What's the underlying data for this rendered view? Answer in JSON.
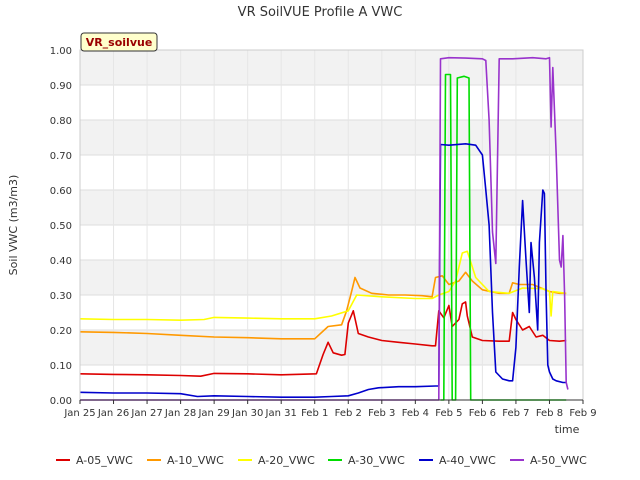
{
  "chart_data": {
    "type": "line",
    "title": "VR SoilVUE Profile A VWC",
    "badge": "VR_soilvue",
    "xlabel": "time",
    "ylabel": "Soil VWC (m3/m3)",
    "xlim": [
      0,
      15
    ],
    "ylim": [
      0,
      1
    ],
    "x_tick_labels": [
      "Jan 25",
      "Jan 26",
      "Jan 27",
      "Jan 28",
      "Jan 29",
      "Jan 30",
      "Jan 31",
      "Feb 1",
      "Feb 2",
      "Feb 3",
      "Feb 4",
      "Feb 5",
      "Feb 6",
      "Feb 7",
      "Feb 8",
      "Feb 9"
    ],
    "y_ticks": [
      0,
      0.1,
      0.2,
      0.3,
      0.4,
      0.5,
      0.6,
      0.7,
      0.8,
      0.9,
      1.0
    ],
    "y_tick_labels": [
      "0.00",
      "0.10",
      "0.20",
      "0.30",
      "0.40",
      "0.50",
      "0.60",
      "0.70",
      "0.80",
      "0.90",
      "1.00"
    ],
    "x_unit": "days since Jan 25",
    "legend_position": "bottom",
    "series": [
      {
        "name": "A-05_VWC",
        "color": "#dd0000",
        "points": [
          [
            0,
            0.075
          ],
          [
            1,
            0.073
          ],
          [
            2,
            0.072
          ],
          [
            3,
            0.07
          ],
          [
            3.6,
            0.068
          ],
          [
            4,
            0.076
          ],
          [
            5,
            0.075
          ],
          [
            6,
            0.072
          ],
          [
            6.8,
            0.074
          ],
          [
            7.05,
            0.075
          ],
          [
            7.25,
            0.13
          ],
          [
            7.4,
            0.165
          ],
          [
            7.55,
            0.135
          ],
          [
            7.8,
            0.128
          ],
          [
            7.9,
            0.13
          ],
          [
            8.0,
            0.22
          ],
          [
            8.15,
            0.255
          ],
          [
            8.3,
            0.19
          ],
          [
            8.6,
            0.18
          ],
          [
            9.0,
            0.17
          ],
          [
            9.5,
            0.165
          ],
          [
            10,
            0.16
          ],
          [
            10.5,
            0.155
          ],
          [
            10.6,
            0.155
          ],
          [
            10.7,
            0.255
          ],
          [
            10.85,
            0.235
          ],
          [
            11.0,
            0.27
          ],
          [
            11.1,
            0.21
          ],
          [
            11.3,
            0.23
          ],
          [
            11.4,
            0.275
          ],
          [
            11.5,
            0.28
          ],
          [
            11.55,
            0.24
          ],
          [
            11.7,
            0.18
          ],
          [
            12.0,
            0.17
          ],
          [
            12.5,
            0.168
          ],
          [
            12.8,
            0.168
          ],
          [
            12.9,
            0.25
          ],
          [
            13.0,
            0.23
          ],
          [
            13.2,
            0.2
          ],
          [
            13.4,
            0.21
          ],
          [
            13.6,
            0.18
          ],
          [
            13.8,
            0.185
          ],
          [
            14.0,
            0.17
          ],
          [
            14.3,
            0.168
          ],
          [
            14.5,
            0.17
          ]
        ]
      },
      {
        "name": "A-10_VWC",
        "color": "#ff9900",
        "points": [
          [
            0,
            0.195
          ],
          [
            1,
            0.193
          ],
          [
            2,
            0.19
          ],
          [
            3,
            0.185
          ],
          [
            4,
            0.18
          ],
          [
            5,
            0.178
          ],
          [
            6,
            0.175
          ],
          [
            7,
            0.175
          ],
          [
            7.4,
            0.21
          ],
          [
            7.8,
            0.215
          ],
          [
            7.95,
            0.255
          ],
          [
            8.1,
            0.31
          ],
          [
            8.2,
            0.35
          ],
          [
            8.35,
            0.32
          ],
          [
            8.7,
            0.305
          ],
          [
            9.2,
            0.3
          ],
          [
            9.7,
            0.3
          ],
          [
            10.2,
            0.298
          ],
          [
            10.5,
            0.295
          ],
          [
            10.6,
            0.35
          ],
          [
            10.8,
            0.355
          ],
          [
            11.0,
            0.33
          ],
          [
            11.3,
            0.34
          ],
          [
            11.5,
            0.365
          ],
          [
            11.7,
            0.34
          ],
          [
            12.0,
            0.315
          ],
          [
            12.5,
            0.305
          ],
          [
            12.8,
            0.305
          ],
          [
            12.9,
            0.335
          ],
          [
            13.1,
            0.33
          ],
          [
            13.5,
            0.33
          ],
          [
            14.0,
            0.31
          ],
          [
            14.3,
            0.305
          ],
          [
            14.5,
            0.305
          ]
        ]
      },
      {
        "name": "A-20_VWC",
        "color": "#ffff00",
        "points": [
          [
            0,
            0.232
          ],
          [
            1,
            0.23
          ],
          [
            2,
            0.23
          ],
          [
            3,
            0.228
          ],
          [
            3.7,
            0.23
          ],
          [
            4,
            0.236
          ],
          [
            5,
            0.234
          ],
          [
            6,
            0.232
          ],
          [
            7,
            0.232
          ],
          [
            7.5,
            0.24
          ],
          [
            8.0,
            0.255
          ],
          [
            8.25,
            0.3
          ],
          [
            9,
            0.295
          ],
          [
            10,
            0.29
          ],
          [
            10.5,
            0.29
          ],
          [
            10.7,
            0.3
          ],
          [
            11.0,
            0.31
          ],
          [
            11.2,
            0.34
          ],
          [
            11.4,
            0.42
          ],
          [
            11.55,
            0.425
          ],
          [
            11.8,
            0.35
          ],
          [
            12.2,
            0.31
          ],
          [
            12.8,
            0.305
          ],
          [
            13.2,
            0.32
          ],
          [
            13.8,
            0.318
          ],
          [
            14.0,
            0.31
          ],
          [
            14.05,
            0.24
          ],
          [
            14.1,
            0.31
          ],
          [
            14.5,
            0.305
          ]
        ]
      },
      {
        "name": "A-30_VWC",
        "color": "#00dd00",
        "points": [
          [
            10.75,
            0.0
          ],
          [
            10.85,
            0.0
          ],
          [
            10.9,
            0.93
          ],
          [
            11.05,
            0.93
          ],
          [
            11.1,
            0.0
          ],
          [
            11.2,
            0.0
          ],
          [
            11.25,
            0.92
          ],
          [
            11.45,
            0.925
          ],
          [
            11.6,
            0.92
          ],
          [
            11.65,
            0.0
          ],
          [
            14.5,
            0.0
          ]
        ]
      },
      {
        "name": "A-40_VWC",
        "color": "#0000cc",
        "points": [
          [
            0,
            0.022
          ],
          [
            1,
            0.02
          ],
          [
            2,
            0.02
          ],
          [
            3,
            0.018
          ],
          [
            3.5,
            0.01
          ],
          [
            4,
            0.012
          ],
          [
            5,
            0.01
          ],
          [
            6,
            0.008
          ],
          [
            7,
            0.008
          ],
          [
            7.5,
            0.01
          ],
          [
            8.0,
            0.012
          ],
          [
            8.3,
            0.02
          ],
          [
            8.6,
            0.03
          ],
          [
            8.9,
            0.035
          ],
          [
            9.5,
            0.038
          ],
          [
            10,
            0.038
          ],
          [
            10.6,
            0.04
          ],
          [
            10.7,
            0.04
          ],
          [
            10.75,
            0.73
          ],
          [
            11.0,
            0.728
          ],
          [
            11.5,
            0.732
          ],
          [
            11.8,
            0.728
          ],
          [
            12.0,
            0.7
          ],
          [
            12.1,
            0.6
          ],
          [
            12.2,
            0.5
          ],
          [
            12.3,
            0.25
          ],
          [
            12.4,
            0.08
          ],
          [
            12.6,
            0.06
          ],
          [
            12.8,
            0.055
          ],
          [
            12.9,
            0.055
          ],
          [
            13.0,
            0.15
          ],
          [
            13.1,
            0.38
          ],
          [
            13.2,
            0.57
          ],
          [
            13.3,
            0.4
          ],
          [
            13.4,
            0.25
          ],
          [
            13.45,
            0.45
          ],
          [
            13.55,
            0.35
          ],
          [
            13.65,
            0.2
          ],
          [
            13.7,
            0.45
          ],
          [
            13.8,
            0.6
          ],
          [
            13.85,
            0.59
          ],
          [
            13.9,
            0.3
          ],
          [
            13.95,
            0.1
          ],
          [
            14.0,
            0.08
          ],
          [
            14.1,
            0.06
          ],
          [
            14.2,
            0.055
          ],
          [
            14.4,
            0.05
          ],
          [
            14.5,
            0.05
          ]
        ]
      },
      {
        "name": "A-50_VWC",
        "color": "#9933cc",
        "points": [
          [
            0,
            0.0
          ],
          [
            10.6,
            0.0
          ],
          [
            10.7,
            0.0
          ],
          [
            10.75,
            0.975
          ],
          [
            11.0,
            0.978
          ],
          [
            11.5,
            0.977
          ],
          [
            12.0,
            0.975
          ],
          [
            12.1,
            0.97
          ],
          [
            12.2,
            0.8
          ],
          [
            12.3,
            0.48
          ],
          [
            12.4,
            0.39
          ],
          [
            12.5,
            0.975
          ],
          [
            12.9,
            0.975
          ],
          [
            13.5,
            0.978
          ],
          [
            13.9,
            0.975
          ],
          [
            14.0,
            0.978
          ],
          [
            14.05,
            0.78
          ],
          [
            14.1,
            0.95
          ],
          [
            14.2,
            0.7
          ],
          [
            14.3,
            0.4
          ],
          [
            14.35,
            0.38
          ],
          [
            14.4,
            0.47
          ],
          [
            14.45,
            0.3
          ],
          [
            14.5,
            0.05
          ],
          [
            14.55,
            0.03
          ]
        ]
      }
    ]
  }
}
